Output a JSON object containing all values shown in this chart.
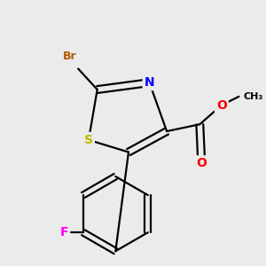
{
  "background_color": "#ebebeb",
  "atom_colors": {
    "Br": "#b05a00",
    "S": "#b8b800",
    "N": "#0000ff",
    "O": "#ff0000",
    "F": "#ff00ff",
    "C": "#000000"
  },
  "bond_color": "#000000",
  "figsize": [
    3.0,
    3.0
  ],
  "dpi": 100,
  "lw": 1.6
}
